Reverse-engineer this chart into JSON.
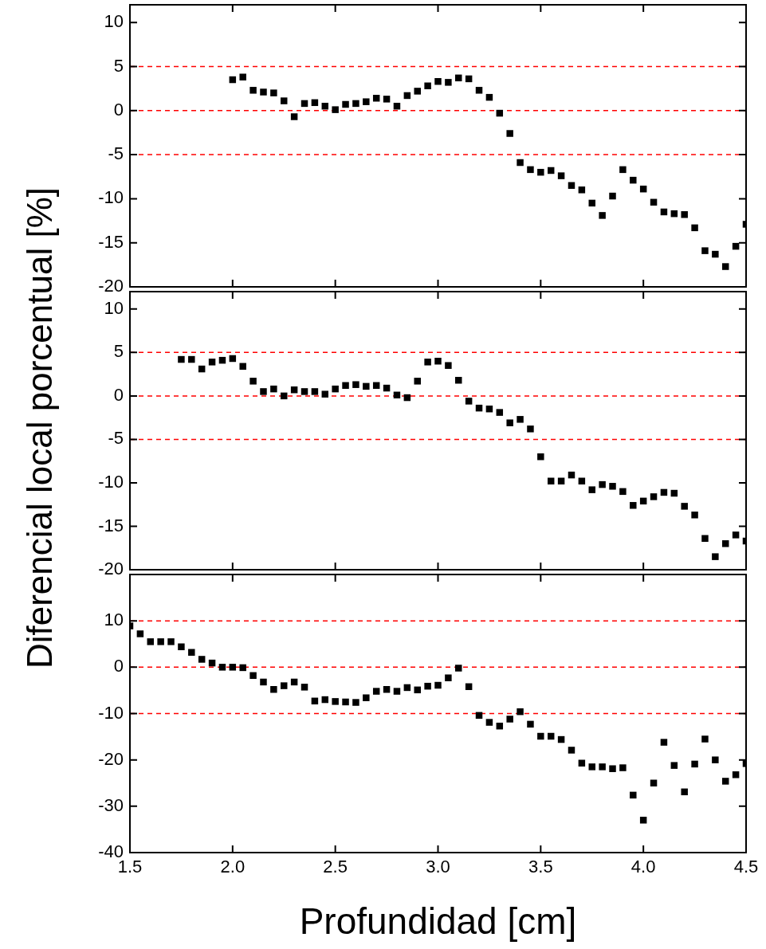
{
  "chart_data": [
    {
      "type": "scatter",
      "marker": "square",
      "tick_labels": "y",
      "xlim": [
        1.5,
        4.5
      ],
      "xticks": [
        1.5,
        2,
        2.5,
        3,
        3.5,
        4,
        4.5
      ],
      "ylim": [
        -20,
        12
      ],
      "yticks": [
        -20,
        -15,
        -10,
        -5,
        0,
        5,
        10
      ],
      "x": [
        2.0,
        2.05,
        2.1,
        2.15,
        2.2,
        2.25,
        2.3,
        2.35,
        2.4,
        2.45,
        2.5,
        2.55,
        2.6,
        2.65,
        2.7,
        2.75,
        2.8,
        2.85,
        2.9,
        2.95,
        3.0,
        3.05,
        3.1,
        3.15,
        3.2,
        3.25,
        3.3,
        3.35,
        3.4,
        3.45,
        3.5,
        3.55,
        3.6,
        3.65,
        3.7,
        3.75,
        3.8,
        3.85,
        3.9,
        3.95,
        4.0,
        4.05,
        4.1,
        4.15,
        4.2,
        4.25,
        4.3,
        4.35,
        4.4,
        4.45,
        4.5
      ],
      "series": [
        {
          "color": "#000000",
          "values": [
            3.5,
            3.8,
            2.3,
            2.1,
            2.0,
            1.1,
            -0.7,
            0.8,
            0.9,
            0.5,
            0.1,
            0.7,
            0.8,
            1.0,
            1.4,
            1.3,
            0.5,
            1.7,
            2.2,
            2.8,
            3.3,
            3.2,
            3.7,
            3.6,
            2.3,
            1.5,
            -0.3,
            -2.6,
            -5.9,
            -6.7,
            -7.0,
            -6.8,
            -7.4,
            -8.5,
            -9.0,
            -10.5,
            -11.9,
            -9.7,
            -6.7,
            -7.9,
            -8.9,
            -10.4,
            -11.5,
            -11.7,
            -11.8,
            -13.3,
            -15.9,
            -16.3,
            -17.7,
            -15.4,
            -12.9
          ]
        }
      ],
      "ref_lines": [
        {
          "axis": "y",
          "value": 5,
          "color": "#ff0000",
          "line_style": "dashed"
        },
        {
          "axis": "y",
          "value": 0,
          "color": "#ff0000",
          "line_style": "dashed"
        },
        {
          "axis": "y",
          "value": -5,
          "color": "#ff0000",
          "line_style": "dashed"
        }
      ]
    },
    {
      "type": "scatter",
      "marker": "square",
      "tick_labels": "y",
      "ylabel": "Diferencial local porcentual [%]",
      "xlim": [
        1.5,
        4.5
      ],
      "xticks": [
        1.5,
        2,
        2.5,
        3,
        3.5,
        4,
        4.5
      ],
      "ylim": [
        -20,
        12
      ],
      "yticks": [
        -20,
        -15,
        -10,
        -5,
        0,
        5,
        10
      ],
      "x": [
        1.75,
        1.8,
        1.85,
        1.9,
        1.95,
        2.0,
        2.05,
        2.1,
        2.15,
        2.2,
        2.25,
        2.3,
        2.35,
        2.4,
        2.45,
        2.5,
        2.55,
        2.6,
        2.65,
        2.7,
        2.75,
        2.8,
        2.85,
        2.9,
        2.95,
        3.0,
        3.05,
        3.1,
        3.15,
        3.2,
        3.25,
        3.3,
        3.35,
        3.4,
        3.45,
        3.5,
        3.55,
        3.6,
        3.65,
        3.7,
        3.75,
        3.8,
        3.85,
        3.9,
        3.95,
        4.0,
        4.05,
        4.1,
        4.15,
        4.2,
        4.25,
        4.3,
        4.35,
        4.4,
        4.45,
        4.5
      ],
      "series": [
        {
          "color": "#000000",
          "values": [
            4.2,
            4.2,
            3.1,
            3.9,
            4.1,
            4.3,
            3.4,
            1.7,
            0.5,
            0.8,
            0.0,
            0.7,
            0.5,
            0.5,
            0.2,
            0.8,
            1.2,
            1.3,
            1.1,
            1.2,
            0.9,
            0.1,
            -0.2,
            1.7,
            3.9,
            4.0,
            3.5,
            1.8,
            -0.6,
            -1.4,
            -1.5,
            -1.9,
            -3.1,
            -2.7,
            -3.8,
            -7.0,
            -9.8,
            -9.8,
            -9.1,
            -9.8,
            -10.8,
            -10.2,
            -10.4,
            -11.0,
            -12.6,
            -12.1,
            -11.6,
            -11.1,
            -11.2,
            -12.7,
            -13.7,
            -16.4,
            -18.5,
            -17.0,
            -16.0,
            -16.7
          ]
        }
      ],
      "ref_lines": [
        {
          "axis": "y",
          "value": 5,
          "color": "#ff0000",
          "line_style": "dashed"
        },
        {
          "axis": "y",
          "value": 0,
          "color": "#ff0000",
          "line_style": "dashed"
        },
        {
          "axis": "y",
          "value": -5,
          "color": "#ff0000",
          "line_style": "dashed"
        }
      ]
    },
    {
      "type": "scatter",
      "marker": "square",
      "xlabel": "Profundidad [cm]",
      "xlim": [
        1.5,
        4.5
      ],
      "xticks": [
        1.5,
        {
          "value": 2,
          "label": "2.0"
        },
        2.5,
        {
          "value": 3,
          "label": "3.0"
        },
        3.5,
        {
          "value": 4,
          "label": "4.0"
        },
        4.5
      ],
      "ylim": [
        -40,
        20
      ],
      "yticks": [
        -40,
        -30,
        -20,
        -10,
        0,
        10
      ],
      "x": [
        1.5,
        1.55,
        1.6,
        1.65,
        1.7,
        1.75,
        1.8,
        1.85,
        1.9,
        1.95,
        2.0,
        2.05,
        2.1,
        2.15,
        2.2,
        2.25,
        2.3,
        2.35,
        2.4,
        2.45,
        2.5,
        2.55,
        2.6,
        2.65,
        2.7,
        2.75,
        2.8,
        2.85,
        2.9,
        2.95,
        3.0,
        3.05,
        3.1,
        3.15,
        3.2,
        3.25,
        3.3,
        3.35,
        3.4,
        3.45,
        3.5,
        3.55,
        3.6,
        3.65,
        3.7,
        3.75,
        3.8,
        3.85,
        3.9,
        3.95,
        4.0,
        4.05,
        4.1,
        4.15,
        4.2,
        4.25,
        4.3,
        4.35,
        4.4,
        4.45,
        4.5
      ],
      "series": [
        {
          "color": "#000000",
          "values": [
            8.9,
            7.2,
            5.5,
            5.5,
            5.5,
            4.4,
            3.2,
            1.7,
            0.9,
            0.0,
            0.0,
            -0.1,
            -1.8,
            -3.2,
            -4.8,
            -4.0,
            -3.2,
            -4.3,
            -7.3,
            -7.0,
            -7.4,
            -7.5,
            -7.6,
            -6.6,
            -5.2,
            -4.8,
            -5.2,
            -4.4,
            -4.9,
            -4.1,
            -3.9,
            -2.3,
            -0.2,
            -4.2,
            -10.4,
            -11.9,
            -12.7,
            -11.2,
            -9.6,
            -12.3,
            -14.9,
            -14.9,
            -15.6,
            -17.9,
            -20.7,
            -21.5,
            -21.5,
            -21.9,
            -21.7,
            -27.6,
            -33.0,
            -25.0,
            -16.2,
            -21.2,
            -26.9,
            -20.9,
            -15.5,
            -20.0,
            -24.6,
            -23.2,
            -20.8
          ]
        }
      ],
      "ref_lines": [
        {
          "axis": "y",
          "value": 10,
          "color": "#ff0000",
          "line_style": "dashed"
        },
        {
          "axis": "y",
          "value": 0,
          "color": "#ff0000",
          "line_style": "dashed"
        },
        {
          "axis": "y",
          "value": -10,
          "color": "#ff0000",
          "line_style": "dashed"
        }
      ]
    }
  ]
}
